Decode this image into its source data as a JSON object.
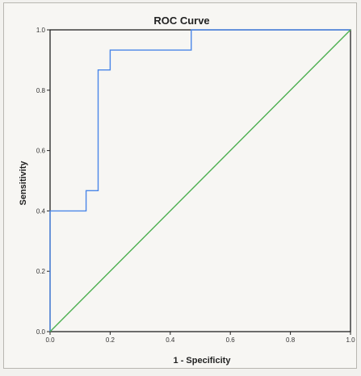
{
  "chart_data": {
    "type": "line",
    "title": "ROC Curve",
    "xlabel": "1 - Specificity",
    "ylabel": "Sensitivity",
    "xlim": [
      0,
      1
    ],
    "ylim": [
      0,
      1
    ],
    "xticks": [
      "0.0",
      "0.2",
      "0.4",
      "0.6",
      "0.8",
      "1.0"
    ],
    "yticks": [
      "0.0",
      "0.2",
      "0.4",
      "0.6",
      "0.8",
      "1.0"
    ],
    "grid": false,
    "legend": false,
    "series": [
      {
        "color": "#4a86e8",
        "x": [
          0,
          0,
          0.12,
          0.12,
          0.16,
          0.16,
          0.2,
          0.2,
          0.47,
          0.47,
          1
        ],
        "y": [
          0,
          0.4,
          0.4,
          0.467,
          0.467,
          0.867,
          0.867,
          0.933,
          0.933,
          1,
          1
        ]
      },
      {
        "color": "#4caf50",
        "x": [
          0,
          1
        ],
        "y": [
          0,
          1
        ]
      }
    ]
  }
}
